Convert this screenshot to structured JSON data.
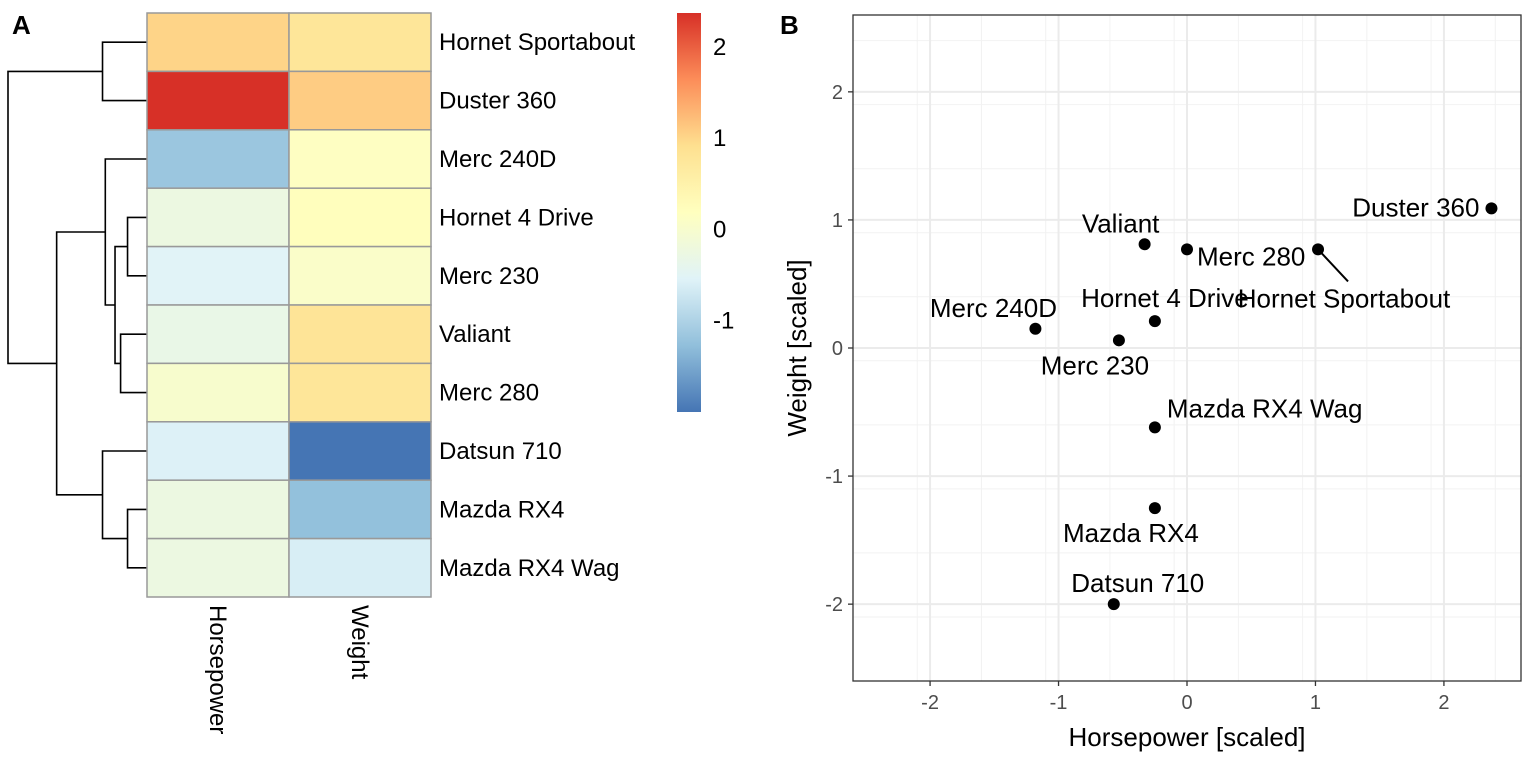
{
  "chart_data": [
    {
      "panel_label": "A",
      "type": "heatmap",
      "columns": [
        "Horsepower",
        "Weight"
      ],
      "rows": [
        "Hornet Sportabout",
        "Duster 360",
        "Merc 240D",
        "Hornet 4 Drive",
        "Merc 230",
        "Valiant",
        "Merc 280",
        "Datsun 710",
        "Mazda RX4",
        "Mazda RX4 Wag"
      ],
      "values": [
        [
          1.02,
          0.77
        ],
        [
          2.37,
          1.09
        ],
        [
          -1.18,
          0.15
        ],
        [
          -0.25,
          0.21
        ],
        [
          -0.53,
          0.06
        ],
        [
          -0.33,
          0.81
        ],
        [
          0.0,
          0.77
        ],
        [
          -0.57,
          -2.0
        ],
        [
          -0.25,
          -1.25
        ],
        [
          -0.25,
          -0.62
        ]
      ],
      "colorbar": {
        "range": [
          -2.0,
          2.37
        ],
        "ticks": [
          -1,
          0,
          1,
          2
        ],
        "tick_labels": [
          "-1",
          "0",
          "1",
          "2"
        ],
        "colors": [
          "#4575b4",
          "#91bfdb",
          "#e0f3f8",
          "#ffffbf",
          "#fee090",
          "#fc8d59",
          "#d73027"
        ]
      },
      "dendrogram": "left",
      "grid_color": "#999999"
    },
    {
      "panel_label": "B",
      "type": "scatter",
      "xlabel": "Horsepower [scaled]",
      "ylabel": "Weight [scaled]",
      "xlim": [
        -2.6,
        2.6
      ],
      "ylim": [
        -2.6,
        2.6
      ],
      "xticks": [
        -2,
        -1,
        0,
        1,
        2
      ],
      "xtick_labels": [
        "-2",
        "-1",
        "0",
        "1",
        "2"
      ],
      "yticks": [
        -2,
        -1,
        0,
        1,
        2
      ],
      "ytick_labels": [
        "-2",
        "-1",
        "0",
        "1",
        "2"
      ],
      "grid": true,
      "points": [
        {
          "label": "Duster 360",
          "x": 2.37,
          "y": 1.09
        },
        {
          "label": "Hornet Sportabout",
          "x": 1.02,
          "y": 0.77
        },
        {
          "label": "Merc 280",
          "x": 0.0,
          "y": 0.77
        },
        {
          "label": "Valiant",
          "x": -0.33,
          "y": 0.81
        },
        {
          "label": "Hornet 4 Drive",
          "x": -0.25,
          "y": 0.21
        },
        {
          "label": "Merc 240D",
          "x": -1.18,
          "y": 0.15
        },
        {
          "label": "Merc 230",
          "x": -0.53,
          "y": 0.06
        },
        {
          "label": "Mazda RX4 Wag",
          "x": -0.25,
          "y": -0.62
        },
        {
          "label": "Mazda RX4",
          "x": -0.25,
          "y": -1.25
        },
        {
          "label": "Datsun 710",
          "x": -0.57,
          "y": -2.0
        }
      ]
    }
  ]
}
